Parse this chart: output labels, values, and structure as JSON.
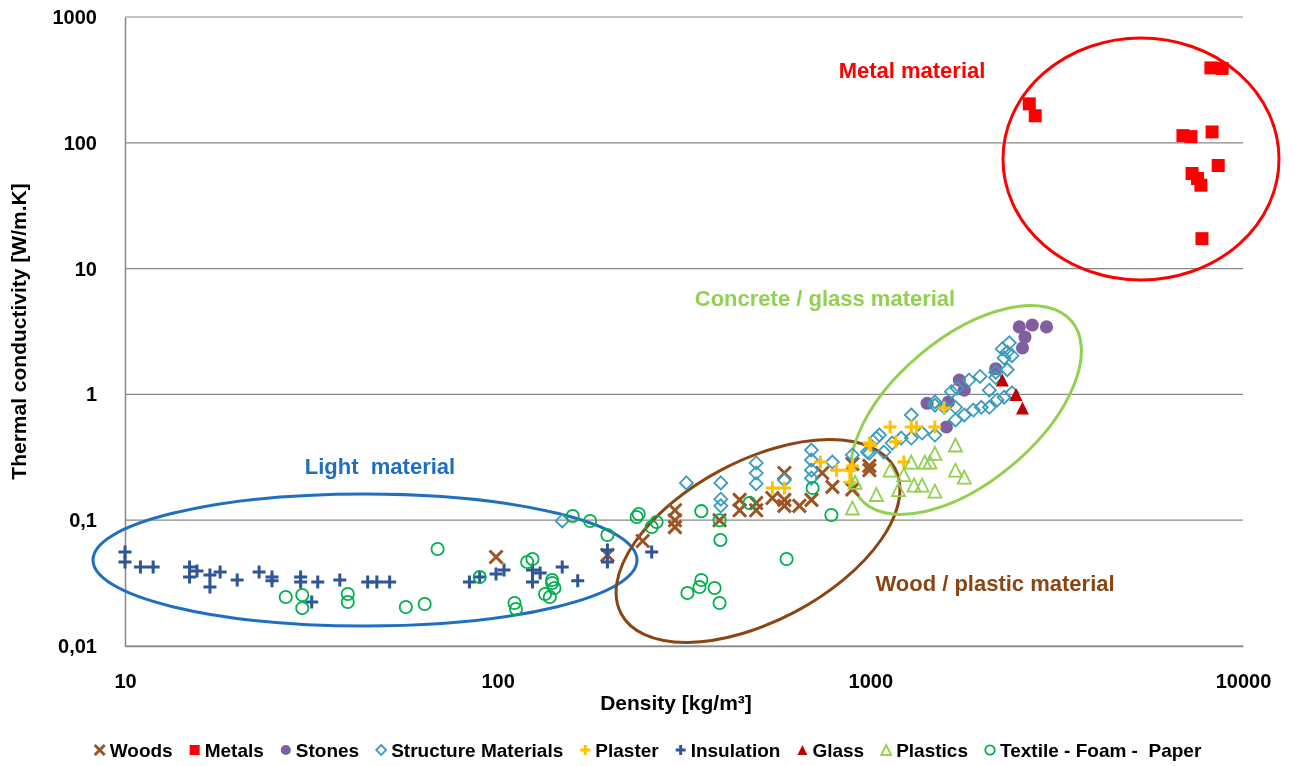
{
  "chart_data": {
    "type": "scatter",
    "xlabel": "Density [kg/m³]",
    "ylabel": "Thermal conductivity [W/m.K]",
    "log": "xy",
    "grid": "y",
    "legend": "bottom",
    "xlim": [
      10,
      10000
    ],
    "xticks": [
      10,
      100,
      1000,
      10000
    ],
    "ylim": [
      0.01,
      1000
    ],
    "yticks": [
      {
        "value": 0.01,
        "label": "0,01"
      },
      {
        "value": 0.1,
        "label": "0,1"
      },
      1,
      10,
      100,
      1000
    ],
    "annotations": [
      "Light  material",
      "Wood / plastic material",
      "Concrete / glass material",
      "Metal material"
    ],
    "series": [
      {
        "name": "Woods",
        "color": "#9c5424",
        "marker": "x",
        "x": [
          99,
          197,
          245,
          299,
          299,
          299,
          394,
          446,
          446,
          494,
          494,
          546,
          588,
          588,
          588,
          645,
          695,
          743,
          791,
          895,
          994,
          895,
          994
        ],
        "values": [
          0.051,
          0.0529,
          0.0684,
          0.12,
          0.1,
          0.088,
          0.1,
          0.145,
          0.12,
          0.137,
          0.12,
          0.15,
          0.237,
          0.145,
          0.13,
          0.13,
          0.145,
          0.237,
          0.184,
          0.176,
          0.25,
          0.28,
          0.27
        ]
      },
      {
        "name": "Metals",
        "color": "#ff0000",
        "marker": "square",
        "x": [
          2670,
          2770,
          6900,
          7250,
          8260,
          8200,
          8790,
          8580,
          7300,
          7710,
          7550,
          7760
        ],
        "values": [
          204,
          164,
          114,
          112,
          122,
          394,
          390,
          66,
          57,
          46,
          52,
          17.3
        ]
      },
      {
        "name": "Stones",
        "color": "#7f5fa0",
        "marker": "circle",
        "x": [
          2510,
          2720,
          2970,
          2600,
          2560,
          1733,
          1787,
          1420,
          1620,
          1600,
          2170
        ],
        "values": [
          3.44,
          3.56,
          3.44,
          2.86,
          2.34,
          1.3,
          1.08,
          0.85,
          0.87,
          0.551,
          1.6
        ]
      },
      {
        "name": "Structure Materials",
        "color": "#3b9cbc",
        "marker": "diamond-open",
        "x": [
          149,
          321,
          397,
          397,
          397,
          494,
          494,
          494,
          588,
          695,
          695,
          695,
          695,
          791,
          895,
          982,
          1058,
          1087,
          994,
          1038,
          1145,
          1210,
          1288,
          1288,
          1377,
          1490,
          1490,
          1490,
          1578,
          1692,
          1692,
          1787,
          1890,
          1985,
          2086,
          2190,
          2285,
          2400,
          2086,
          1650,
          1710,
          1840,
          1970,
          2170,
          2170,
          2330,
          2285,
          2330,
          2400,
          2260,
          2360
        ],
        "values": [
          0.0986,
          0.198,
          0.198,
          0.147,
          0.13,
          0.285,
          0.237,
          0.195,
          0.209,
          0.361,
          0.301,
          0.25,
          0.216,
          0.29,
          0.33,
          0.348,
          0.475,
          0.348,
          0.342,
          0.45,
          0.41,
          0.45,
          0.686,
          0.45,
          0.493,
          0.475,
          0.82,
          0.87,
          0.79,
          0.79,
          0.627,
          0.686,
          0.751,
          0.79,
          0.79,
          0.904,
          0.95,
          1.03,
          1.08,
          1.05,
          1.12,
          1.3,
          1.39,
          1.36,
          1.5,
          1.57,
          1.95,
          2.17,
          2.03,
          2.3,
          2.57
        ]
      },
      {
        "name": "Plaster",
        "color": "#ffc000",
        "marker": "plus",
        "x": [
          546,
          588,
          735,
          812,
          881,
          881,
          994,
          1130,
          1288,
          1330,
          1490,
          1578,
          1170,
          1230,
          1000,
          895
        ],
        "values": [
          0.18,
          0.18,
          0.29,
          0.25,
          0.25,
          0.2,
          0.41,
          0.55,
          0.55,
          0.55,
          0.55,
          0.78,
          0.42,
          0.29,
          0.39,
          0.27
        ]
      },
      {
        "name": "Insulation",
        "color": "#2f5597",
        "marker": "plus",
        "x": [
          10,
          10,
          11,
          11.9,
          14.9,
          14.9,
          15.6,
          16.9,
          16.9,
          18,
          20,
          22.9,
          24.8,
          24.8,
          29.6,
          29.6,
          32.9,
          31.7,
          37.7,
          44.8,
          47.4,
          51.3,
          84,
          89.5,
          99,
          104,
          124,
          130,
          124,
          149,
          164,
          197,
          197,
          259
        ],
        "values": [
          0.0558,
          0.0465,
          0.0425,
          0.0425,
          0.0425,
          0.0353,
          0.0394,
          0.0366,
          0.0294,
          0.0387,
          0.0335,
          0.0387,
          0.0353,
          0.033,
          0.0353,
          0.0323,
          0.0323,
          0.0224,
          0.0335,
          0.0323,
          0.0323,
          0.0323,
          0.0323,
          0.0353,
          0.0373,
          0.0402,
          0.0402,
          0.038,
          0.0323,
          0.0425,
          0.033,
          0.058,
          0.0465,
          0.0558
        ]
      },
      {
        "name": "Glass",
        "color": "#c00000",
        "marker": "triangle",
        "x": [
          2260,
          2460,
          2560
        ],
        "values": [
          1.3,
          1.0,
          0.78
        ]
      },
      {
        "name": "Plastics",
        "color": "#92d050",
        "marker": "triangle-open",
        "x": [
          1692,
          1490,
          1400,
          1288,
          1445,
          1230,
          1130,
          1692,
          1787,
          1310,
          1377,
          1490,
          1190,
          910,
          1038,
          895
        ],
        "values": [
          0.396,
          0.34,
          0.29,
          0.29,
          0.29,
          0.23,
          0.25,
          0.25,
          0.22,
          0.19,
          0.19,
          0.17,
          0.175,
          0.2,
          0.16,
          0.125
        ]
      },
      {
        "name": "Textile - Foam -  Paper",
        "color": "#00b050",
        "marker": "circle-open",
        "x": [
          69,
          27,
          29.9,
          29.9,
          39.6,
          39.6,
          56.7,
          63.7,
          89.5,
          111,
          112,
          120,
          124,
          134,
          138,
          140,
          142,
          140,
          159,
          177,
          197,
          236,
          239,
          259,
          267,
          352,
          396,
          323,
          348,
          352,
          382,
          394,
          394,
          596,
          474,
          700,
          786
        ],
        "values": [
          0.059,
          0.0245,
          0.0254,
          0.02,
          0.0259,
          0.0224,
          0.0204,
          0.0216,
          0.0353,
          0.022,
          0.0197,
          0.0465,
          0.0492,
          0.0259,
          0.0245,
          0.0335,
          0.0289,
          0.0317,
          0.108,
          0.0986,
          0.0762,
          0.106,
          0.112,
          0.0883,
          0.0968,
          0.118,
          0.0697,
          0.0264,
          0.0294,
          0.0335,
          0.0289,
          0.022,
          0.1,
          0.0492,
          0.137,
          0.18,
          0.11
        ]
      }
    ]
  }
}
